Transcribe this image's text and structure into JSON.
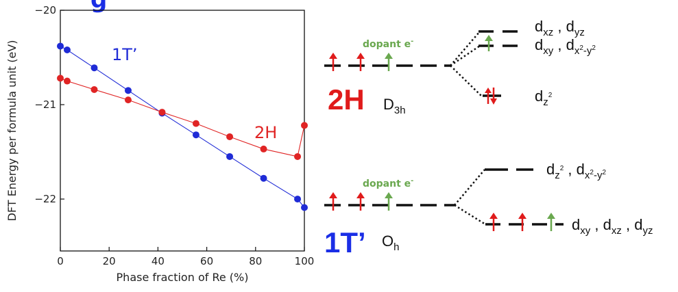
{
  "chart_data": {
    "type": "line",
    "xlabel": "Phase fraction of Re (%)",
    "ylabel": "DFT Energy per formula unit (eV)",
    "xlim": [
      0,
      100
    ],
    "ylim": [
      -22.55,
      -20.0
    ],
    "xticks": [
      0,
      20,
      40,
      60,
      80,
      100
    ],
    "yticks": [
      -20,
      -21,
      -22
    ],
    "grid": false,
    "series": [
      {
        "name": "1T’",
        "color": "#1f2bd6",
        "x": [
          0,
          2.8,
          13.9,
          27.8,
          41.7,
          55.6,
          69.4,
          83.3,
          97.2,
          100
        ],
        "y": [
          -20.38,
          -20.42,
          -20.61,
          -20.85,
          -21.09,
          -21.32,
          -21.55,
          -21.78,
          -22.0,
          -22.09
        ]
      },
      {
        "name": "2H",
        "color": "#e02424",
        "x": [
          0,
          2.8,
          13.9,
          27.8,
          41.7,
          55.6,
          69.4,
          83.3,
          97.2,
          100
        ],
        "y": [
          -20.72,
          -20.75,
          -20.84,
          -20.95,
          -21.08,
          -21.2,
          -21.34,
          -21.47,
          -21.55,
          -21.22
        ]
      }
    ]
  },
  "diagram": {
    "header_fragment": "g",
    "dopant_label": "dopant e",
    "dopant_sup": "-",
    "phase_2h": {
      "name": "2H",
      "symmetry": "D",
      "symmetry_sub": "3h"
    },
    "phase_1t": {
      "name": "1T’",
      "symmetry": "O",
      "symmetry_sub": "h"
    },
    "levels_2h": {
      "upper_a": {
        "d": "d",
        "s1": "xz",
        "sep": " , ",
        "d2": "d",
        "s2": "yz"
      },
      "upper_b": {
        "d": "d",
        "s1": "xy",
        "sep": " , ",
        "d2": "d",
        "s2": "x",
        "s2sup": "2",
        "s2b": "-y",
        "s2sup2": "2"
      },
      "lower": {
        "d": "d",
        "s1": "z",
        "s1sup": "2"
      }
    },
    "levels_1t": {
      "upper": {
        "d": "d",
        "s1": "z",
        "s1sup": "2",
        "sep": " , ",
        "d2": "d",
        "s2": "x",
        "s2sup": "2",
        "s2b": "-y",
        "s2sup2": "2"
      },
      "lower": {
        "d": "d",
        "s1": "xy",
        "sep1": " , ",
        "d2": "d",
        "s2": "xz",
        "sep2": " , ",
        "d3": "d",
        "s3": "yz"
      }
    },
    "colors": {
      "red": "#e01b1b",
      "green": "#6aa84f",
      "blue": "#1a2ee6",
      "black": "#111111"
    }
  }
}
